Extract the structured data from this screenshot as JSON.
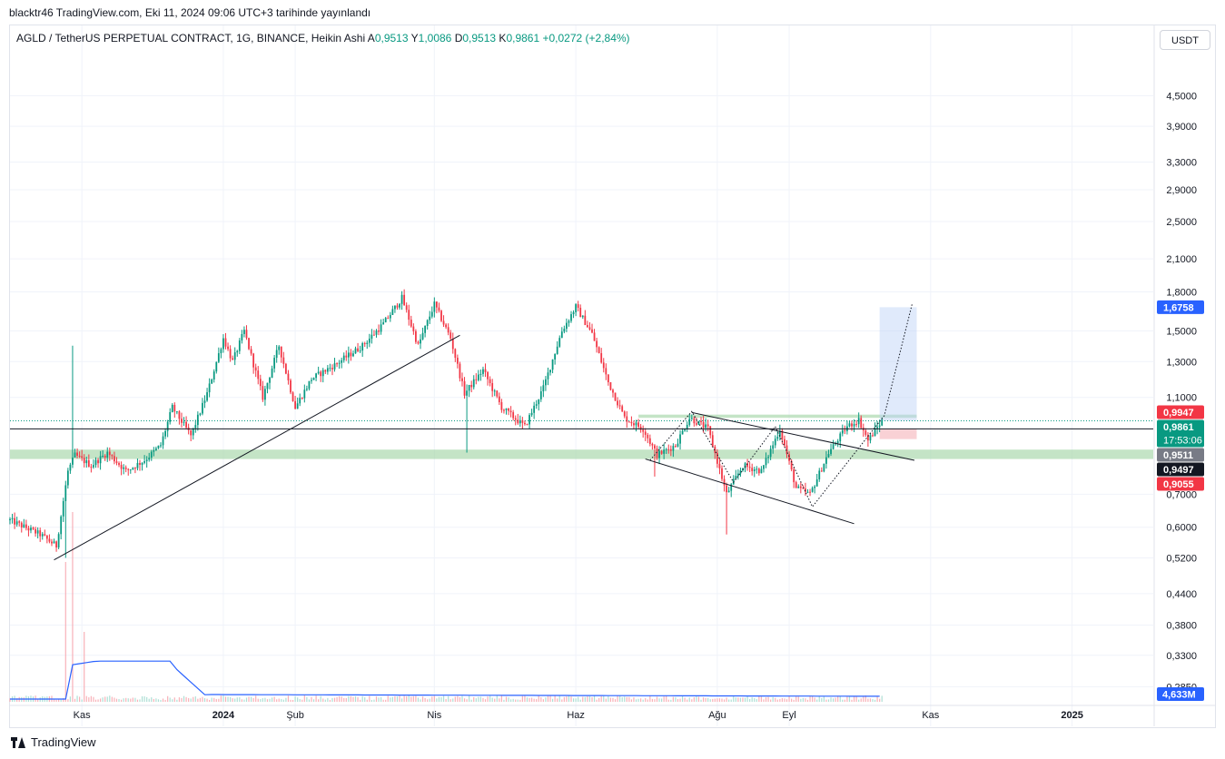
{
  "header": {
    "published": "blacktr46 TradingView.com, Eki 11, 2024 09:06 UTC+3 tarihinde yayınlandı"
  },
  "legend": {
    "symbol": "AGLD / TetherUS PERPETUAL CONTRACT, 1G, BINANCE, Heikin Ashi",
    "open_label": "A",
    "open": "0,9513",
    "high_label": "Y",
    "high": "1,0086",
    "low_label": "D",
    "low": "0,9513",
    "close_label": "K",
    "close": "0,9861",
    "change": "+0,0272 (+2,84%)"
  },
  "currency_button": "USDT",
  "footer": {
    "brand": "TradingView"
  },
  "colors": {
    "up": "#089981",
    "down": "#f23645",
    "grid": "#f0f3fa",
    "volume_line": "#2962ff",
    "support_zone": "#a5d6a7",
    "target_box": "#bbd0f7",
    "stop_box": "#f7c6cb"
  },
  "chart_data": {
    "type": "candlestick",
    "style": "Heikin Ashi",
    "price_scale": "log",
    "y_ticks": [
      "4,5000",
      "3,9000",
      "3,3000",
      "2,9000",
      "2,5000",
      "2,1000",
      "1,8000",
      "1,5000",
      "1,3000",
      "1,1000",
      "0,7000",
      "0,6000",
      "0,5200",
      "0,4400",
      "0,3800",
      "0,3300",
      "0,2850"
    ],
    "y_tick_values": [
      4.5,
      3.9,
      3.3,
      2.9,
      2.5,
      2.1,
      1.8,
      1.5,
      1.3,
      1.1,
      0.7,
      0.6,
      0.52,
      0.44,
      0.38,
      0.33,
      0.285
    ],
    "x_ticks": [
      "Kas",
      "2024",
      "Şub",
      "Nis",
      "Haz",
      "Ağu",
      "Eyl",
      "Kas",
      "2025"
    ],
    "x_tick_dates": [
      "2023-11-01",
      "2024-01-01",
      "2024-02-01",
      "2024-04-01",
      "2024-06-01",
      "2024-08-01",
      "2024-09-01",
      "2024-11-01",
      "2025-01-01"
    ],
    "date_range": [
      "2023-10-01",
      "2025-02-05"
    ],
    "price_range": [
      0.26,
      5.5
    ],
    "last_bar_date": "2024-10-11",
    "price_path": [
      [
        "2023-10-01",
        0.62
      ],
      [
        "2023-10-14",
        0.58
      ],
      [
        "2023-10-21",
        0.55
      ],
      [
        "2023-10-26",
        0.78
      ],
      [
        "2023-10-29",
        0.84
      ],
      [
        "2023-11-05",
        0.8
      ],
      [
        "2023-11-12",
        0.85
      ],
      [
        "2023-11-20",
        0.78
      ],
      [
        "2023-11-28",
        0.82
      ],
      [
        "2023-12-05",
        0.88
      ],
      [
        "2023-12-10",
        1.05
      ],
      [
        "2023-12-18",
        0.92
      ],
      [
        "2023-12-25",
        1.12
      ],
      [
        "2024-01-01",
        1.45
      ],
      [
        "2024-01-05",
        1.3
      ],
      [
        "2024-01-10",
        1.5
      ],
      [
        "2024-01-18",
        1.1
      ],
      [
        "2024-01-25",
        1.4
      ],
      [
        "2024-02-01",
        1.05
      ],
      [
        "2024-02-08",
        1.2
      ],
      [
        "2024-02-18",
        1.28
      ],
      [
        "2024-03-01",
        1.4
      ],
      [
        "2024-03-10",
        1.55
      ],
      [
        "2024-03-18",
        1.75
      ],
      [
        "2024-03-25",
        1.4
      ],
      [
        "2024-04-01",
        1.7
      ],
      [
        "2024-04-08",
        1.45
      ],
      [
        "2024-04-14",
        1.12
      ],
      [
        "2024-04-22",
        1.25
      ],
      [
        "2024-04-30",
        1.05
      ],
      [
        "2024-05-10",
        0.96
      ],
      [
        "2024-05-18",
        1.15
      ],
      [
        "2024-05-26",
        1.5
      ],
      [
        "2024-06-01",
        1.68
      ],
      [
        "2024-06-08",
        1.48
      ],
      [
        "2024-06-15",
        1.18
      ],
      [
        "2024-06-22",
        1.0
      ],
      [
        "2024-06-30",
        0.95
      ],
      [
        "2024-07-06",
        0.84
      ],
      [
        "2024-07-14",
        0.88
      ],
      [
        "2024-07-20",
        1.0
      ],
      [
        "2024-07-28",
        0.95
      ],
      [
        "2024-08-05",
        0.7
      ],
      [
        "2024-08-12",
        0.8
      ],
      [
        "2024-08-20",
        0.78
      ],
      [
        "2024-08-28",
        0.95
      ],
      [
        "2024-09-04",
        0.72
      ],
      [
        "2024-09-10",
        0.7
      ],
      [
        "2024-09-18",
        0.85
      ],
      [
        "2024-09-26",
        0.96
      ],
      [
        "2024-10-01",
        0.99
      ],
      [
        "2024-10-05",
        0.9
      ],
      [
        "2024-10-11",
        0.9861
      ]
    ],
    "wicks": [
      [
        "2023-10-28",
        1.4
      ],
      [
        "2023-10-25",
        0.52
      ],
      [
        "2024-04-15",
        0.85
      ],
      [
        "2024-08-05",
        0.58
      ],
      [
        "2024-07-05",
        0.76
      ]
    ],
    "volume_spikes": [
      [
        "2023-10-25",
        0.7
      ],
      [
        "2023-10-28",
        0.95
      ],
      [
        "2023-11-02",
        0.35
      ]
    ],
    "drawings": {
      "trendlines": [
        {
          "from": [
            "2023-10-20",
            0.515
          ],
          "to": [
            "2024-04-12",
            1.47
          ]
        },
        {
          "from": [
            "2024-07-21",
            1.025
          ],
          "to": [
            "2024-10-25",
            0.82
          ]
        },
        {
          "from": [
            "2024-07-01",
            0.825
          ],
          "to": [
            "2024-09-29",
            0.61
          ]
        },
        {
          "from": [
            "2023-10-01",
            0.9497
          ],
          "to": [
            "2025-02-05",
            0.9497
          ]
        }
      ],
      "dotted_path": [
        [
          "2024-07-03",
          0.82
        ],
        [
          "2024-07-21",
          1.03
        ],
        [
          "2024-08-08",
          0.74
        ],
        [
          "2024-08-26",
          0.96
        ],
        [
          "2024-09-11",
          0.66
        ],
        [
          "2024-10-12",
          1.01
        ],
        [
          "2024-10-24",
          1.7
        ]
      ],
      "support_zones": [
        {
          "low": 0.825,
          "high": 0.862,
          "from": "2023-10-01",
          "to": "2025-02-05"
        },
        {
          "low": 1.0,
          "high": 1.015,
          "from": "2024-06-28",
          "to": "2024-10-26"
        }
      ],
      "target_box": {
        "low": 0.9861,
        "high": 1.6758,
        "from": "2024-10-10",
        "to": "2024-10-26"
      },
      "stop_box": {
        "low": 0.9055,
        "high": 0.9497,
        "from": "2024-10-10",
        "to": "2024-10-26"
      },
      "last_price_line": 0.9861
    },
    "price_labels": [
      {
        "value": 1.6758,
        "text": "1,6758",
        "bg": "#2962ff"
      },
      {
        "value": 0.9947,
        "text": "0,9947",
        "bg": "#f23645"
      },
      {
        "value": 0.9861,
        "text": "0,9861",
        "sub": "17:53:06",
        "bg": "#089981"
      },
      {
        "value": 0.9511,
        "text": "0,9511",
        "bg": "#787b86"
      },
      {
        "value": 0.9497,
        "text": "0,9497",
        "bg": "#131722"
      },
      {
        "value": 0.9055,
        "text": "0,9055",
        "bg": "#f23645"
      }
    ],
    "volume_label": {
      "text": "4,633M",
      "bg": "#2962ff"
    }
  }
}
